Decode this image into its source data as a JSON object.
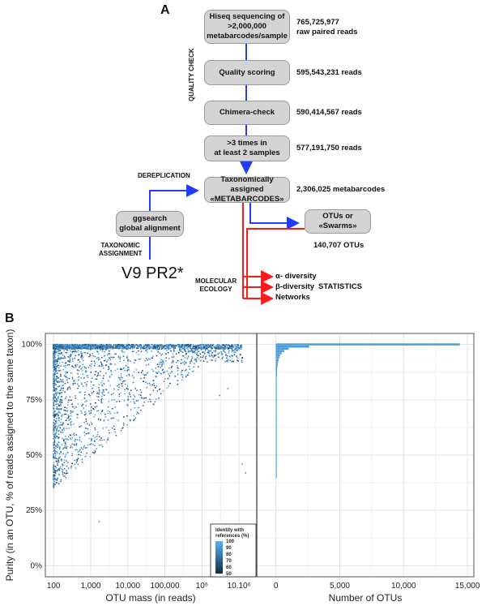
{
  "panel_a": {
    "letter": "A",
    "side_label": "QUALITY CHECK",
    "steps": [
      {
        "label": "Hiseq sequencing of >2,000,000 metabarcodes/sample",
        "lines": [
          "Hiseq sequencing of",
          ">2,000,000",
          "metabarcodes/sample"
        ],
        "count_lines": [
          "765,725,977",
          "raw paired reads"
        ]
      },
      {
        "label": "Quality scoring",
        "lines": [
          "Quality scoring"
        ],
        "count_lines": [
          "595,543,231 reads"
        ]
      },
      {
        "label": "Chimera-check",
        "lines": [
          "Chimera-check"
        ],
        "count_lines": [
          "590,414,567 reads"
        ]
      },
      {
        "label": ">3 times in at least 2 samples",
        "lines": [
          ">3 times in",
          "at least 2 samples"
        ],
        "count_lines": [
          "577,191,750 reads"
        ]
      },
      {
        "label": "Taxonomically assigned «METABARCODES»",
        "lines": [
          "Taxonomically assigned",
          "«METABARCODES»"
        ],
        "count_lines": [
          "2,306,025 metabarcodes"
        ]
      }
    ],
    "ggsearch": {
      "lines": [
        "ggsearch",
        "global alignment"
      ]
    },
    "otus": {
      "lines": [
        "OTUs or",
        "«Swarms»"
      ],
      "count": "140,707 OTUs"
    },
    "dereplication": "DEREPLICATION",
    "taxonomic_assignment": [
      "TAXONOMIC",
      "ASSIGNMENT"
    ],
    "database": "V9 PR2*",
    "molecular_ecology": [
      "MOLECULAR",
      "ECOLOGY"
    ],
    "outputs": [
      "α- diversity",
      "β-diversity",
      "Networks"
    ],
    "statistics": "STATISTICS",
    "colors": {
      "blue_arrow": "#1f3cff",
      "red_arrow": "#ff1a1a",
      "box_fill": "#d4d4d4"
    }
  },
  "panel_b": {
    "letter": "B"
  },
  "chart_data": [
    {
      "type": "scatter",
      "title": "",
      "xlabel": "OTU mass (in reads)",
      "ylabel": "Purity (in an OTU, % of reads assigned to the same taxon)",
      "x_scale": "log10",
      "xlim": [
        60,
        30000000
      ],
      "ylim": [
        -5,
        105
      ],
      "xticks": [
        100,
        1000,
        10000,
        100000,
        1000000,
        10000000
      ],
      "xtick_labels": [
        "100",
        "1,000",
        "10,000",
        "100,000",
        "10⁶",
        "10.10⁶"
      ],
      "yticks": [
        0,
        25,
        50,
        75,
        100
      ],
      "ytick_labels": [
        "0%",
        "25%",
        "50%",
        "75%",
        "100%"
      ],
      "grid": true,
      "color_legend": {
        "title": [
          "Identity with",
          "references (%)"
        ],
        "ticks": [
          100,
          90,
          80,
          70,
          60,
          50
        ],
        "range": [
          50,
          100
        ],
        "color_low": "#132b43",
        "color_high": "#56b1f7",
        "placement": "bottom-right"
      },
      "description": "Thousands of OTUs; dense band at 100% purity across 100 to ~10^7 reads; spread of points from ~20% to 100% purity concentrated at low OTU mass (100–10,000 reads), sparse at higher masses.",
      "notable_points": [
        {
          "x": 1700,
          "y": 20
        },
        {
          "x": 12000000,
          "y": 46
        },
        {
          "x": 15000000,
          "y": 42
        },
        {
          "x": 3000000,
          "y": 77
        },
        {
          "x": 5000000,
          "y": 80
        }
      ]
    },
    {
      "type": "bar",
      "orientation": "horizontal",
      "xlabel": "Number of OTUs",
      "ylabel": "",
      "xlim": [
        -1500,
        15500
      ],
      "xticks": [
        0,
        5000,
        10000,
        15000
      ],
      "xtick_labels": [
        "0",
        "5,000",
        "10,000",
        "15,000"
      ],
      "grid": true,
      "bar_color": "#4a9fd8",
      "categories": [
        100,
        99,
        98,
        97,
        96,
        95,
        94,
        93,
        92,
        91,
        90,
        89,
        88,
        87,
        86,
        85,
        80,
        75,
        70,
        65,
        60,
        55,
        50,
        45,
        40
      ],
      "values": [
        14400,
        2600,
        1000,
        650,
        450,
        330,
        260,
        210,
        170,
        140,
        120,
        100,
        90,
        80,
        70,
        60,
        45,
        35,
        30,
        25,
        20,
        15,
        12,
        8,
        5
      ]
    }
  ]
}
